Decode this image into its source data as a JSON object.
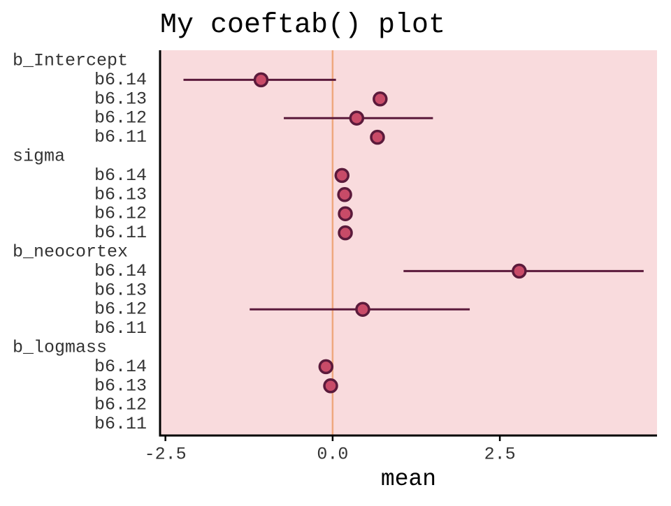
{
  "chart_data": {
    "type": "scatter",
    "title": "My coeftab() plot",
    "xlabel": "mean",
    "ylabel": "",
    "xlim": [
      -2.58,
      4.85
    ],
    "xticks": [
      {
        "value": -2.5,
        "label": "-2.5"
      },
      {
        "value": 0.0,
        "label": "0.0"
      },
      {
        "value": 2.5,
        "label": "2.5"
      }
    ],
    "reference_line": 0,
    "grid": false,
    "colors": {
      "panel_background": "#f9dbdd",
      "interval_line": "#5b1a3b",
      "point_fill": "#c84b68",
      "point_stroke": "#5b1a3b",
      "reference_line": "#eea87e",
      "axis": "#000000"
    },
    "groups": [
      {
        "name": "b_Intercept",
        "rows": [
          {
            "label": "b6.14",
            "mean": -1.07,
            "lower": -2.23,
            "upper": 0.05
          },
          {
            "label": "b6.13",
            "mean": 0.71,
            "lower": null,
            "upper": null
          },
          {
            "label": "b6.12",
            "mean": 0.36,
            "lower": -0.73,
            "upper": 1.5
          },
          {
            "label": "b6.11",
            "mean": 0.67,
            "lower": null,
            "upper": null
          }
        ]
      },
      {
        "name": "sigma",
        "rows": [
          {
            "label": "b6.14",
            "mean": 0.14,
            "lower": null,
            "upper": null
          },
          {
            "label": "b6.13",
            "mean": 0.18,
            "lower": null,
            "upper": null
          },
          {
            "label": "b6.12",
            "mean": 0.19,
            "lower": null,
            "upper": null
          },
          {
            "label": "b6.11",
            "mean": 0.19,
            "lower": null,
            "upper": null
          }
        ]
      },
      {
        "name": "b_neocortex",
        "rows": [
          {
            "label": "b6.14",
            "mean": 2.79,
            "lower": 1.06,
            "upper": 4.65
          },
          {
            "label": "b6.13",
            "mean": null,
            "lower": null,
            "upper": null
          },
          {
            "label": "b6.12",
            "mean": 0.45,
            "lower": -1.24,
            "upper": 2.05
          },
          {
            "label": "b6.11",
            "mean": null,
            "lower": null,
            "upper": null
          }
        ]
      },
      {
        "name": "b_logmass",
        "rows": [
          {
            "label": "b6.14",
            "mean": -0.1,
            "lower": null,
            "upper": null
          },
          {
            "label": "b6.13",
            "mean": -0.03,
            "lower": null,
            "upper": null
          },
          {
            "label": "b6.12",
            "mean": null,
            "lower": null,
            "upper": null
          },
          {
            "label": "b6.11",
            "mean": null,
            "lower": null,
            "upper": null
          }
        ]
      }
    ]
  }
}
